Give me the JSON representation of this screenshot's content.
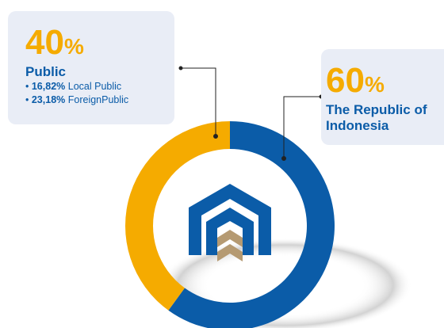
{
  "chart_data": {
    "type": "donut",
    "categories": [
      "Public",
      "The Republic of Indonesia"
    ],
    "values": [
      40,
      60
    ],
    "unit": "%",
    "colors": [
      "#f5ab00",
      "#0b5ca8"
    ],
    "breakdown": [
      {
        "value": 16.82,
        "label": "16,82%",
        "name": "Local Public"
      },
      {
        "value": 23.18,
        "label": "23,18%",
        "name": "ForeignPublic"
      }
    ]
  }
}
